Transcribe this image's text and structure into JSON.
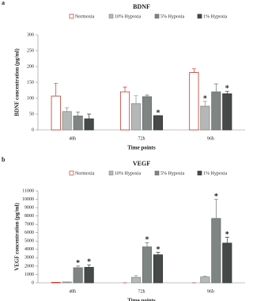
{
  "chart_data": [
    {
      "type": "bar",
      "panel": "a",
      "title": "BDNF",
      "ylabel": "BDNF concentration (pg/ml)",
      "xlabel": "Time points",
      "categories": [
        "48h",
        "72h",
        "96h"
      ],
      "ylim": [
        0,
        300
      ],
      "yticks": [
        0,
        50,
        100,
        150,
        200,
        250,
        300
      ],
      "series": [
        {
          "name": "Normoxia",
          "color": "#ffffff",
          "edgecolor": "#c0392b",
          "values": [
            107,
            120,
            181
          ],
          "errors": [
            40,
            15,
            12
          ],
          "significance": [
            null,
            null,
            null
          ]
        },
        {
          "name": "10% Hypoxia",
          "color": "#b5b8b6",
          "edgecolor": "#8a8d8b",
          "values": [
            58,
            83,
            75
          ],
          "errors": [
            12,
            25,
            15
          ],
          "significance": [
            null,
            null,
            "*"
          ]
        },
        {
          "name": "5% Hypoxia",
          "color": "#7f8583",
          "edgecolor": "#6b706e",
          "values": [
            44,
            105,
            120
          ],
          "errors": [
            12,
            5,
            25
          ],
          "significance": [
            null,
            null,
            null
          ]
        },
        {
          "name": "1% Hypoxia",
          "color": "#454a48",
          "edgecolor": "#333735",
          "values": [
            35,
            45,
            114
          ],
          "errors": [
            15,
            0,
            8
          ],
          "significance": [
            null,
            "*",
            "*"
          ]
        }
      ]
    },
    {
      "type": "bar",
      "panel": "b",
      "title": "VEGF",
      "ylabel": "VEGF concentration (pg/ml)",
      "xlabel": "Time points",
      "categories": [
        "48h",
        "72h",
        "96h"
      ],
      "ylim": [
        0,
        11000
      ],
      "yticks": [
        0,
        1000,
        2000,
        3000,
        4000,
        5000,
        6000,
        7000,
        8000,
        9000,
        10000,
        11000
      ],
      "series": [
        {
          "name": "Normoxia",
          "color": "#ffffff",
          "edgecolor": "#c0392b",
          "values": [
            50,
            0,
            0
          ],
          "errors": [
            0,
            0,
            0
          ],
          "significance": [
            null,
            null,
            null
          ]
        },
        {
          "name": "10% Hypoxia",
          "color": "#b5b8b6",
          "edgecolor": "#8a8d8b",
          "values": [
            100,
            650,
            700
          ],
          "errors": [
            0,
            200,
            100
          ],
          "significance": [
            null,
            null,
            null
          ]
        },
        {
          "name": "5% Hypoxia",
          "color": "#7f8583",
          "edgecolor": "#6b706e",
          "values": [
            1800,
            4300,
            7700
          ],
          "errors": [
            200,
            500,
            2300
          ],
          "significance": [
            "*",
            "*",
            "*"
          ]
        },
        {
          "name": "1% Hypoxia",
          "color": "#454a48",
          "edgecolor": "#333735",
          "values": [
            1850,
            3350,
            4750
          ],
          "errors": [
            300,
            300,
            700
          ],
          "significance": [
            "*",
            "*",
            "*"
          ]
        }
      ]
    }
  ]
}
